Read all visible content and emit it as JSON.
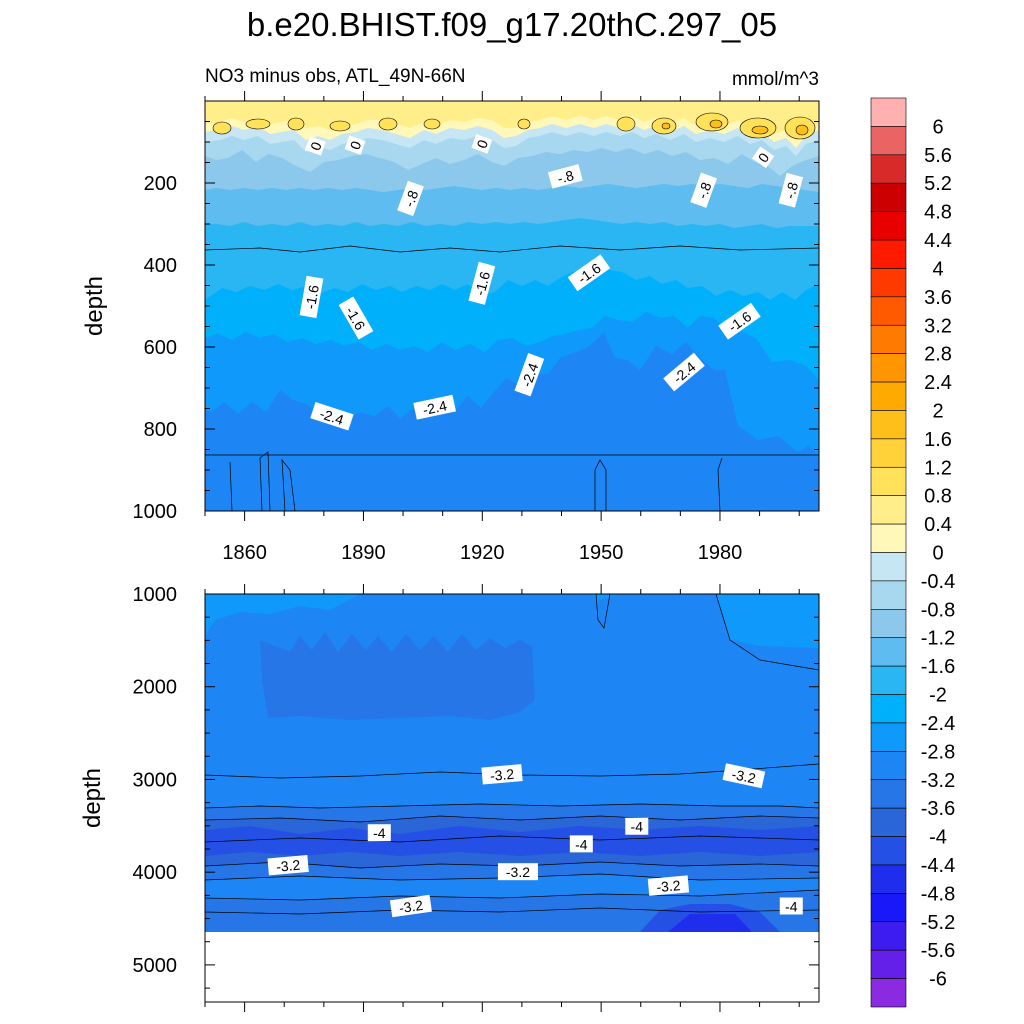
{
  "chart_data": {
    "type": "contour",
    "title": "b.e20.BHIST.f09_g17.20thC.297_05",
    "panels": [
      {
        "id": "upper",
        "left_title": "NO3 minus obs, ATL_49N-66N",
        "right_title": "mmol/m^3",
        "ylabel": "depth",
        "ylim": [
          1000,
          0
        ],
        "yticks": [
          200,
          400,
          600,
          800,
          1000
        ],
        "xlim": [
          1850,
          2005
        ],
        "xticks": [
          1860,
          1890,
          1920,
          1950,
          1980
        ],
        "contour_labels": [
          {
            "text": "0",
            "x": 1878,
            "y": 110,
            "rot": -70
          },
          {
            "text": "0",
            "x": 1888,
            "y": 108,
            "rot": -70
          },
          {
            "text": "0",
            "x": 1920,
            "y": 105,
            "rot": -70
          },
          {
            "text": "0",
            "x": 1991,
            "y": 138,
            "rot": -55
          },
          {
            "text": "-.8",
            "x": 1902,
            "y": 238,
            "rot": -70
          },
          {
            "text": "-.8",
            "x": 1941,
            "y": 185,
            "rot": -15
          },
          {
            "text": "-.8",
            "x": 1976,
            "y": 218,
            "rot": -70
          },
          {
            "text": "-.8",
            "x": 1998,
            "y": 218,
            "rot": -75
          },
          {
            "text": "-1.6",
            "x": 1877,
            "y": 478,
            "rot": -80
          },
          {
            "text": "-1.6",
            "x": 1888,
            "y": 530,
            "rot": 60
          },
          {
            "text": "-1.6",
            "x": 1920,
            "y": 445,
            "rot": -75
          },
          {
            "text": "-1.6",
            "x": 1947,
            "y": 420,
            "rot": -35
          },
          {
            "text": "-1.6",
            "x": 1985,
            "y": 538,
            "rot": -35
          },
          {
            "text": "-2.4",
            "x": 1932,
            "y": 668,
            "rot": -70
          },
          {
            "text": "-2.4",
            "x": 1971,
            "y": 662,
            "rot": -40
          },
          {
            "text": "-2.4",
            "x": 1882,
            "y": 770,
            "rot": 18
          },
          {
            "text": "-2.4",
            "x": 1908,
            "y": 748,
            "rot": -12
          }
        ]
      },
      {
        "id": "lower",
        "ylabel": "depth",
        "ylim": [
          5400,
          1000
        ],
        "yticks": [
          1000,
          2000,
          3000,
          4000,
          5000
        ],
        "xlim": [
          1850,
          2005
        ],
        "xticks": [
          1860,
          1890,
          1920,
          1950,
          1980
        ],
        "data_bottom_depth": 4620,
        "contour_labels": [
          {
            "text": "-3.2",
            "x": 1925,
            "y": 2950,
            "rot": -5
          },
          {
            "text": "-3.2",
            "x": 1986,
            "y": 2965,
            "rot": 12
          },
          {
            "text": "-4",
            "x": 1894,
            "y": 3580,
            "rot": 0
          },
          {
            "text": "-4",
            "x": 1959,
            "y": 3510,
            "rot": 0
          },
          {
            "text": "-4",
            "x": 1945,
            "y": 3700,
            "rot": 0
          },
          {
            "text": "-3.2",
            "x": 1871,
            "y": 3930,
            "rot": -5
          },
          {
            "text": "-3.2",
            "x": 1929,
            "y": 4000,
            "rot": 0
          },
          {
            "text": "-3.2",
            "x": 1967,
            "y": 4150,
            "rot": -5
          },
          {
            "text": "-3.2",
            "x": 1902,
            "y": 4370,
            "rot": -8
          },
          {
            "text": "-4",
            "x": 1998,
            "y": 4370,
            "rot": 0
          }
        ]
      }
    ],
    "colorbar": {
      "levels": [
        "6",
        "5.6",
        "5.2",
        "4.8",
        "4.4",
        "4",
        "3.6",
        "3.2",
        "2.8",
        "2.4",
        "2",
        "1.6",
        "1.2",
        "0.8",
        "0.4",
        "0",
        "-0.4",
        "-0.8",
        "-1.2",
        "-1.6",
        "-2",
        "-2.4",
        "-2.8",
        "-3.2",
        "-3.6",
        "-4",
        "-4.4",
        "-4.8",
        "-5.2",
        "-5.6",
        "-6"
      ],
      "colors": [
        "#FFB0B0",
        "#EA6464",
        "#D92A2A",
        "#CC0000",
        "#E80000",
        "#FF1A00",
        "#FF3A00",
        "#FF5A00",
        "#FF7A00",
        "#FF9600",
        "#FFAA00",
        "#FFBF1A",
        "#FFD23A",
        "#FFE15A",
        "#FFEE8A",
        "#FFF8B8",
        "#C6E6F4",
        "#A8D8F0",
        "#8CC8EC",
        "#5EBCF0",
        "#2AB6F2",
        "#00B0FB",
        "#0F99FA",
        "#1E86F4",
        "#2676E8",
        "#2A66D8",
        "#2450E6",
        "#1E2EEC",
        "#1818F8",
        "#3C1CEE",
        "#6420E8",
        "#8A2BE2"
      ]
    }
  }
}
